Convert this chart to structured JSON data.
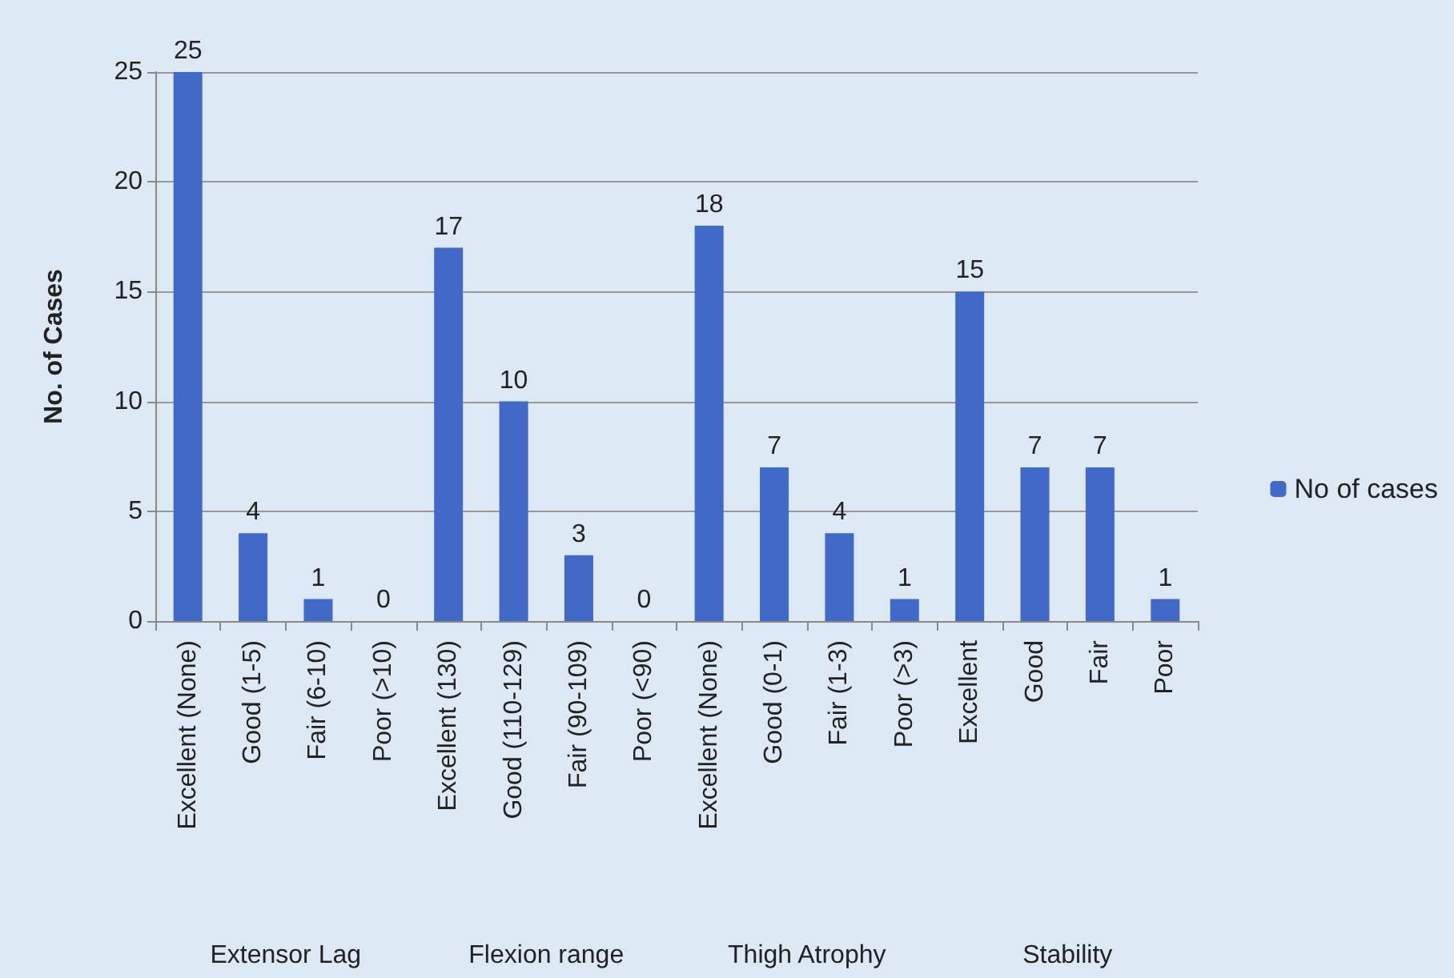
{
  "chart_data": {
    "type": "bar",
    "ylabel": "No. of Cases",
    "categories": [
      "Excellent (None)",
      "Good (1-5)",
      "Fair (6-10)",
      "Poor (>10)",
      "Excellent (130)",
      "Good (110-129)",
      "Fair (90-109)",
      "Poor (<90)",
      "Excellent (None)",
      "Good (0-1)",
      "Fair (1-3)",
      "Poor (>3)",
      "Excellent",
      "Good",
      "Fair",
      "Poor"
    ],
    "series": [
      {
        "name": "No of cases",
        "color": "#4169c8",
        "values": [
          25,
          4,
          1,
          0,
          17,
          10,
          3,
          0,
          18,
          7,
          4,
          1,
          15,
          7,
          7,
          1
        ]
      }
    ],
    "annotations": [
      "Extensor Lag",
      "Flexion range",
      "Thigh Atrophy",
      "Stability"
    ],
    "ylim": [
      0,
      25
    ],
    "yticks": [
      0,
      5,
      10,
      15,
      20,
      25
    ],
    "grid": "y",
    "legend": "right",
    "data_labels": true
  }
}
